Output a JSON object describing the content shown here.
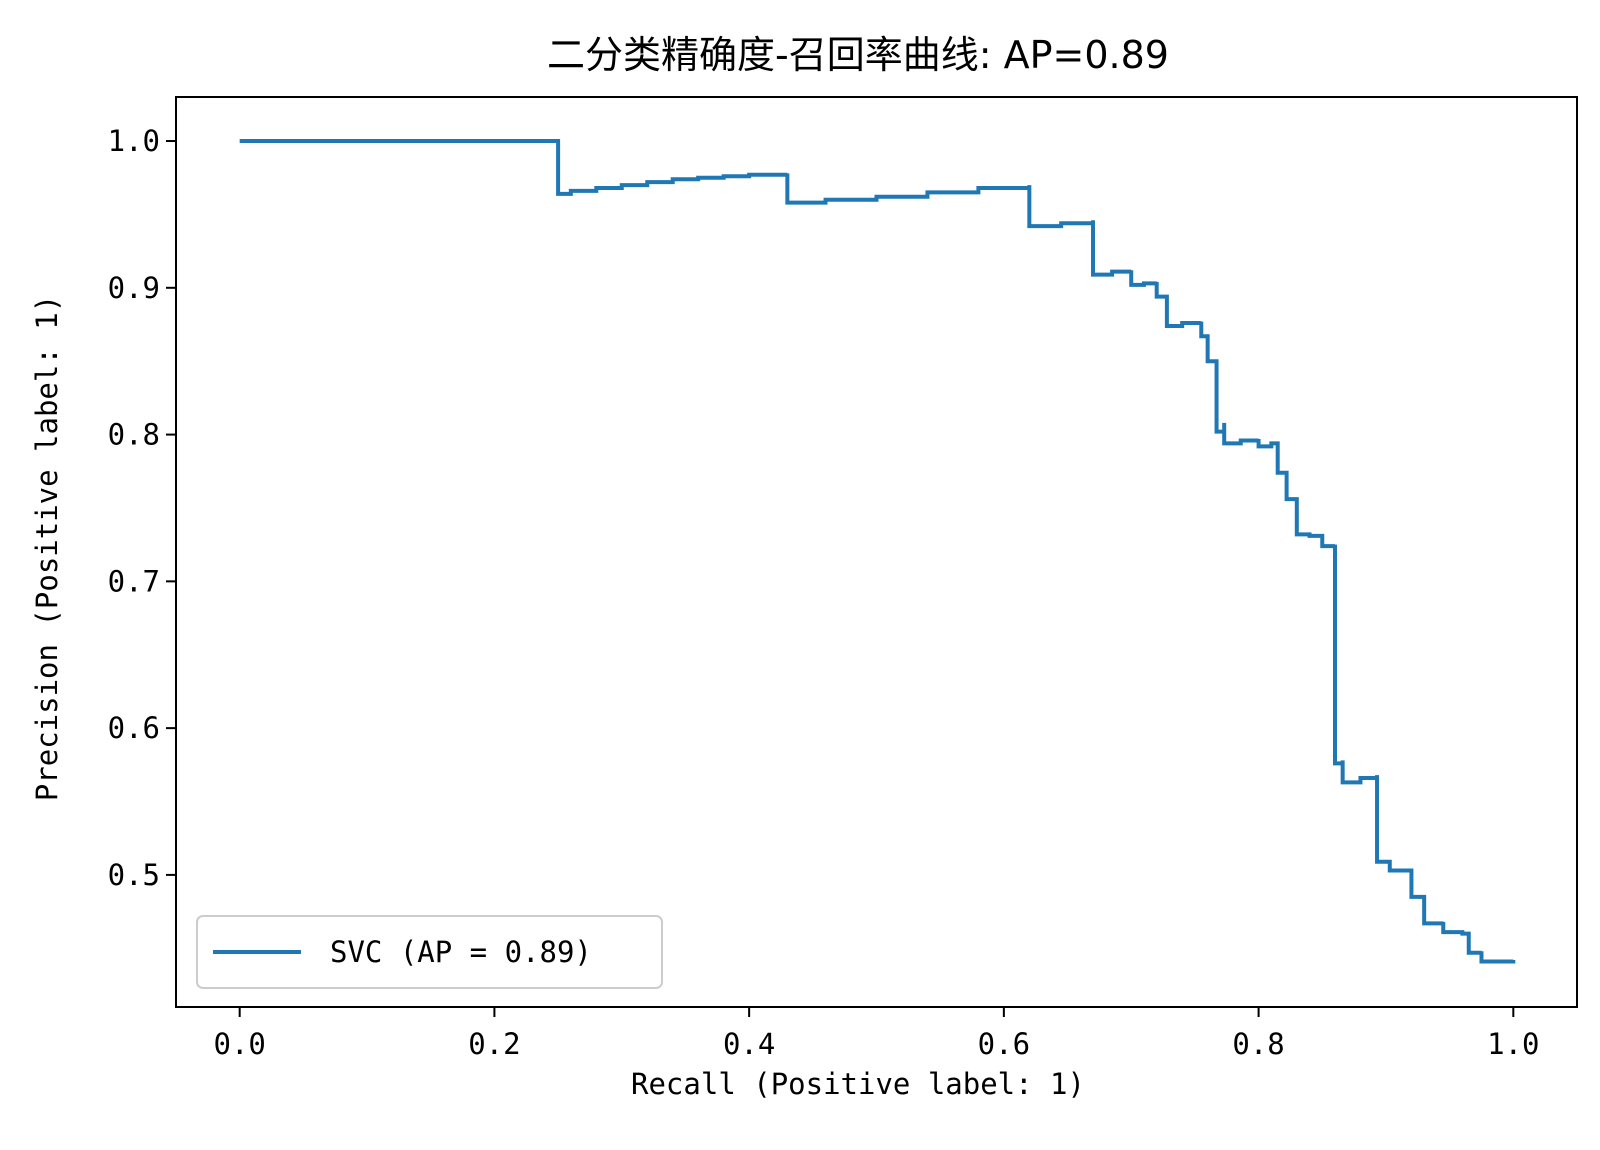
{
  "chart_data": {
    "type": "line",
    "title": "二分类精确度-召回率曲线: AP=0.89",
    "xlabel": "Recall (Positive label: 1)",
    "ylabel": "Precision (Positive label: 1)",
    "xlim": [
      -0.05,
      1.05
    ],
    "ylim": [
      0.41,
      1.03
    ],
    "xticks": [
      0.0,
      0.2,
      0.4,
      0.6,
      0.8,
      1.0
    ],
    "xtick_labels": [
      "0.0",
      "0.2",
      "0.4",
      "0.6",
      "0.8",
      "1.0"
    ],
    "yticks": [
      0.5,
      0.6,
      0.7,
      0.8,
      0.9,
      1.0
    ],
    "ytick_labels": [
      "0.5",
      "0.6",
      "0.7",
      "0.8",
      "0.9",
      "1.0"
    ],
    "grid": false,
    "legend": {
      "position": "lower-left",
      "entries": [
        "SVC (AP = 0.89)"
      ]
    },
    "series": [
      {
        "name": "SVC (AP = 0.89)",
        "color": "#1f77b4",
        "drawstyle": "steps-post",
        "points": [
          [
            0.0,
            1.0
          ],
          [
            0.25,
            1.0
          ],
          [
            0.25,
            0.964
          ],
          [
            0.26,
            0.966
          ],
          [
            0.28,
            0.968
          ],
          [
            0.3,
            0.97
          ],
          [
            0.32,
            0.972
          ],
          [
            0.34,
            0.974
          ],
          [
            0.36,
            0.975
          ],
          [
            0.38,
            0.976
          ],
          [
            0.4,
            0.977
          ],
          [
            0.43,
            0.978
          ],
          [
            0.43,
            0.958
          ],
          [
            0.46,
            0.96
          ],
          [
            0.5,
            0.962
          ],
          [
            0.54,
            0.965
          ],
          [
            0.58,
            0.968
          ],
          [
            0.62,
            0.97
          ],
          [
            0.62,
            0.942
          ],
          [
            0.645,
            0.944
          ],
          [
            0.67,
            0.946
          ],
          [
            0.67,
            0.909
          ],
          [
            0.685,
            0.911
          ],
          [
            0.7,
            0.912
          ],
          [
            0.7,
            0.902
          ],
          [
            0.71,
            0.903
          ],
          [
            0.72,
            0.904
          ],
          [
            0.72,
            0.894
          ],
          [
            0.728,
            0.894
          ],
          [
            0.728,
            0.874
          ],
          [
            0.74,
            0.876
          ],
          [
            0.755,
            0.877
          ],
          [
            0.755,
            0.867
          ],
          [
            0.76,
            0.867
          ],
          [
            0.76,
            0.85
          ],
          [
            0.767,
            0.85
          ],
          [
            0.767,
            0.802
          ],
          [
            0.773,
            0.808
          ],
          [
            0.773,
            0.794
          ],
          [
            0.786,
            0.796
          ],
          [
            0.8,
            0.797
          ],
          [
            0.8,
            0.792
          ],
          [
            0.81,
            0.794
          ],
          [
            0.815,
            0.794
          ],
          [
            0.815,
            0.774
          ],
          [
            0.822,
            0.774
          ],
          [
            0.822,
            0.756
          ],
          [
            0.83,
            0.756
          ],
          [
            0.83,
            0.732
          ],
          [
            0.84,
            0.731
          ],
          [
            0.85,
            0.728
          ],
          [
            0.85,
            0.724
          ],
          [
            0.86,
            0.725
          ],
          [
            0.86,
            0.576
          ],
          [
            0.866,
            0.578
          ],
          [
            0.866,
            0.563
          ],
          [
            0.88,
            0.566
          ],
          [
            0.893,
            0.568
          ],
          [
            0.893,
            0.509
          ],
          [
            0.903,
            0.509
          ],
          [
            0.903,
            0.503
          ],
          [
            0.92,
            0.502
          ],
          [
            0.92,
            0.485
          ],
          [
            0.93,
            0.485
          ],
          [
            0.93,
            0.467
          ],
          [
            0.945,
            0.468
          ],
          [
            0.945,
            0.461
          ],
          [
            0.96,
            0.46
          ],
          [
            0.965,
            0.458
          ],
          [
            0.965,
            0.447
          ],
          [
            0.975,
            0.448
          ],
          [
            0.975,
            0.441
          ],
          [
            0.985,
            0.441
          ],
          [
            1.0,
            0.442
          ]
        ]
      }
    ]
  }
}
